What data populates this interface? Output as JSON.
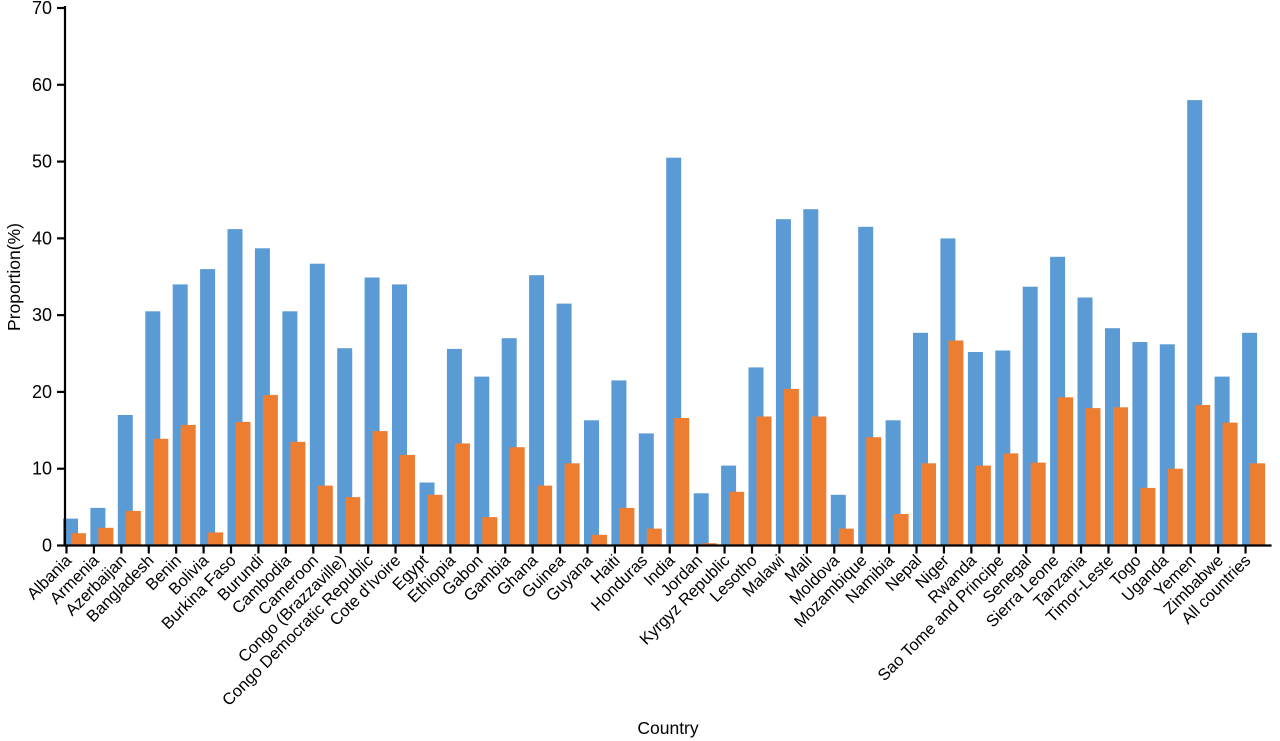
{
  "figure": {
    "background": "#ffffff",
    "axis_color": "#000000",
    "text_color": "#000000"
  },
  "chart_data": {
    "type": "bar",
    "title": "",
    "xlabel": "Country",
    "ylabel": "Proportion(%)",
    "ylim": [
      0,
      70
    ],
    "yticks": [
      0,
      10,
      20,
      30,
      40,
      50,
      60,
      70
    ],
    "grid": false,
    "legend": "none",
    "bar_style": "overlapping-pairs (orange bar drawn in front, offset right of blue bar)",
    "x_tick_label_rotation_deg": 45,
    "categories": [
      "Albania",
      "Armenia",
      "Azerbaijan",
      "Bangladesh",
      "Benin",
      "Bolivia",
      "Burkina Faso",
      "Burundi",
      "Cambodia",
      "Cameroon",
      "Congo (Brazzaville)",
      "Congo Democratic Republic",
      "Cote d'Ivoire",
      "Egypt",
      "Ethiopia",
      "Gabon",
      "Gambia",
      "Ghana",
      "Guinea",
      "Guyana",
      "Haiti",
      "Honduras",
      "India",
      "Jordan",
      "Kyrgyz Republic",
      "Lesotho",
      "Malawi",
      "Mali",
      "Moldova",
      "Mozambique",
      "Namibia",
      "Nepal",
      "Niger",
      "Rwanda",
      "Sao Tome and Principe",
      "Senegal",
      "Sierra Leone",
      "Tanzania",
      "Timor-Leste",
      "Togo",
      "Uganda",
      "Yemen",
      "Zimbabwe",
      "All countries"
    ],
    "series": [
      {
        "name": "blue",
        "color": "#5B9BD5",
        "values": [
          3.5,
          4.9,
          17.0,
          30.5,
          34.0,
          36.0,
          41.2,
          38.7,
          30.5,
          36.7,
          25.7,
          34.9,
          34.0,
          8.2,
          25.6,
          22.0,
          27.0,
          35.2,
          31.5,
          16.3,
          21.5,
          14.6,
          50.5,
          6.8,
          10.4,
          23.2,
          42.5,
          43.8,
          6.6,
          41.5,
          16.3,
          27.7,
          40.0,
          25.2,
          25.4,
          33.7,
          37.6,
          32.3,
          28.3,
          26.5,
          26.2,
          58.0,
          22.0,
          27.7
        ]
      },
      {
        "name": "orange",
        "color": "#ED7D31",
        "values": [
          1.6,
          2.3,
          4.5,
          13.9,
          15.7,
          1.7,
          16.1,
          19.6,
          13.5,
          7.8,
          6.3,
          14.9,
          11.8,
          6.6,
          13.3,
          3.7,
          12.8,
          7.8,
          10.7,
          1.4,
          4.9,
          2.2,
          16.6,
          0.3,
          7.0,
          16.8,
          20.4,
          16.8,
          2.2,
          14.1,
          4.1,
          10.7,
          26.7,
          10.4,
          12.0,
          10.8,
          19.3,
          17.9,
          18.0,
          7.5,
          10.0,
          18.3,
          16.0,
          10.7
        ]
      }
    ]
  }
}
